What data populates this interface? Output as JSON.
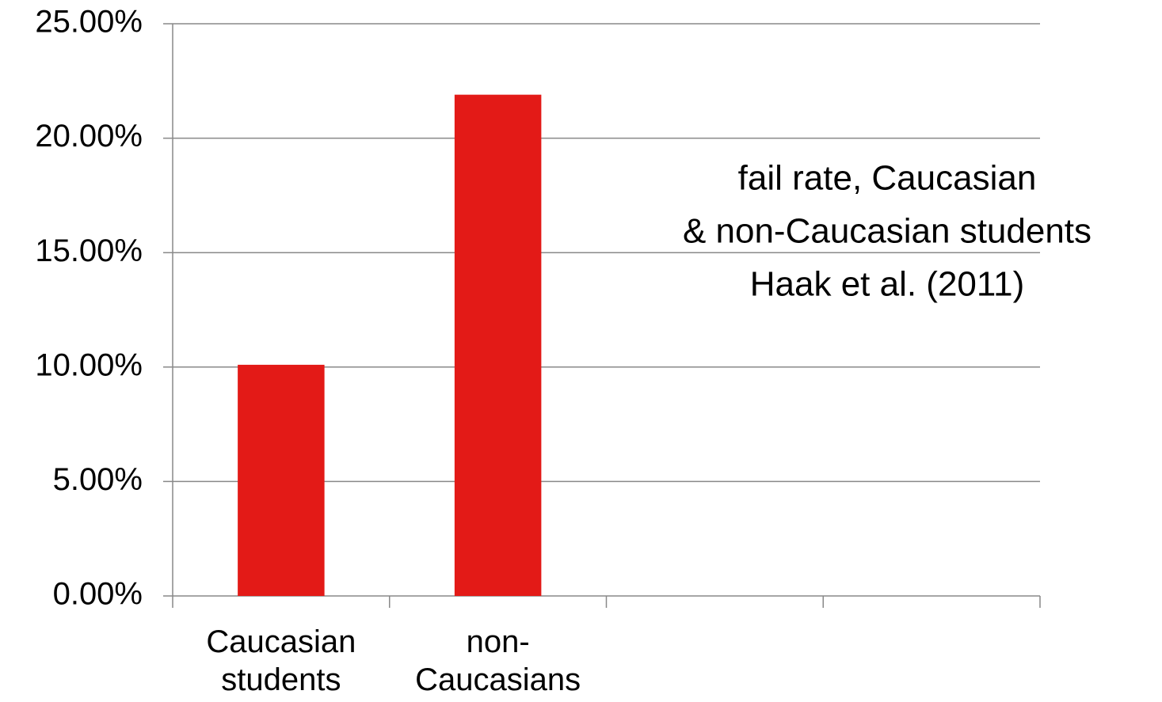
{
  "chart_data": {
    "type": "bar",
    "categories": [
      "Caucasian students",
      "non-Caucasians",
      null,
      null
    ],
    "values": [
      10.1,
      21.9,
      null,
      null
    ],
    "color": "#e31a17",
    "ylim": [
      0,
      25
    ],
    "yticks": [
      {
        "value": 0,
        "label": "0.00%"
      },
      {
        "value": 5,
        "label": "5.00%"
      },
      {
        "value": 10,
        "label": "10.00%"
      },
      {
        "value": 15,
        "label": "15.00%"
      },
      {
        "value": 20,
        "label": "20.00%"
      },
      {
        "value": 25,
        "label": "25.00%"
      }
    ],
    "grid": true,
    "annotation": [
      "fail rate, Caucasian",
      "& non-Caucasian students",
      "Haak et al. (2011)"
    ]
  }
}
